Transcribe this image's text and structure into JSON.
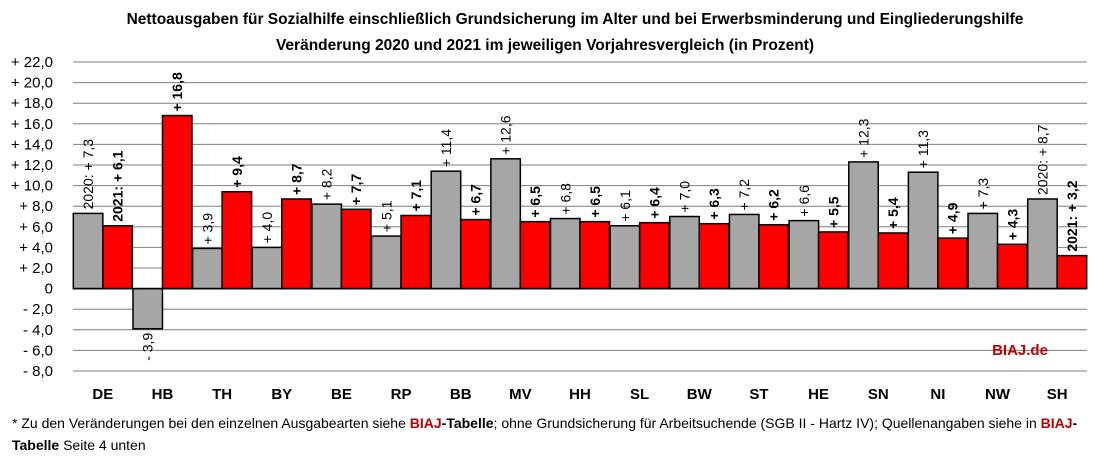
{
  "title_line1": "Nettoausgaben für Sozialhilfe einschließlich Grundsicherung im Alter und bei Erwerbsminderung und Eingliederungshilfe",
  "title_line2": "Veränderung 2020 und 2021 im jeweiligen Vorjahresvergleich (in Prozent)",
  "watermark": "BIAJ.de",
  "footnote": {
    "part1": "* Zu den Veränderungen bei den einzelnen Ausgabearten siehe ",
    "link1_red": "BIAJ",
    "link1_black": "-Tabelle",
    "part2": "; ohne Grundsicherung für Arbeitsuchende (SGB II - Hartz IV); Quellenangaben siehe in ",
    "link2_red": "BIAJ",
    "link2_black": "-Tabelle",
    "part3": " Seite 4 unten"
  },
  "colors": {
    "series_2020": "#a6a6a6",
    "series_2021": "#ff0000",
    "gridline": "#7f7f7f"
  },
  "chart_data": {
    "type": "bar",
    "categories": [
      "DE",
      "HB",
      "TH",
      "BY",
      "BE",
      "RP",
      "BB",
      "MV",
      "HH",
      "SL",
      "BW",
      "ST",
      "HE",
      "SN",
      "NI",
      "NW",
      "SH"
    ],
    "ylim": [
      -8.0,
      22.0
    ],
    "ytick_step": 2,
    "ytick_labels": [
      "+ 22,0",
      "+ 20,0",
      "+ 18,0",
      "+ 16,0",
      "+ 14,0",
      "+ 12,0",
      "+ 10,0",
      "+ 8,0",
      "+ 6,0",
      "+ 4,0",
      "+ 2,0",
      "0",
      "- 2,0",
      "- 4,0",
      "- 6,0",
      "- 8,0"
    ],
    "grid": true,
    "series": [
      {
        "key": "2020",
        "values": [
          7.3,
          -3.9,
          3.9,
          4.0,
          8.2,
          5.1,
          11.4,
          12.6,
          6.8,
          6.1,
          7.0,
          7.2,
          6.6,
          12.3,
          11.3,
          7.3,
          8.7
        ],
        "labels": [
          "2020: + 7,3",
          "- 3,9",
          "+ 3,9",
          "+ 4,0",
          "+ 8,2",
          "+ 5,1",
          "+ 11,4",
          "+ 12,6",
          "+ 6,8",
          "+ 6,1",
          "+ 7,0",
          "+ 7,2",
          "+ 6,6",
          "+ 12,3",
          "+ 11,3",
          "+ 7,3",
          "2020: + 8,7"
        ]
      },
      {
        "key": "2021",
        "values": [
          6.1,
          16.8,
          9.4,
          8.7,
          7.7,
          7.1,
          6.7,
          6.5,
          6.5,
          6.4,
          6.3,
          6.2,
          5.5,
          5.4,
          4.9,
          4.3,
          3.2
        ],
        "labels": [
          "2021: + 6,1",
          "+ 16,8",
          "+ 9,4",
          "+ 8,7",
          "+ 7,7",
          "+ 7,1",
          "+ 6,7",
          "+ 6,5",
          "+ 6,5",
          "+ 6,4",
          "+ 6,3",
          "+ 6,2",
          "+ 5,5",
          "+ 5,4",
          "+ 4,9",
          "+ 4,3",
          "2021: + 3,2"
        ]
      }
    ]
  }
}
